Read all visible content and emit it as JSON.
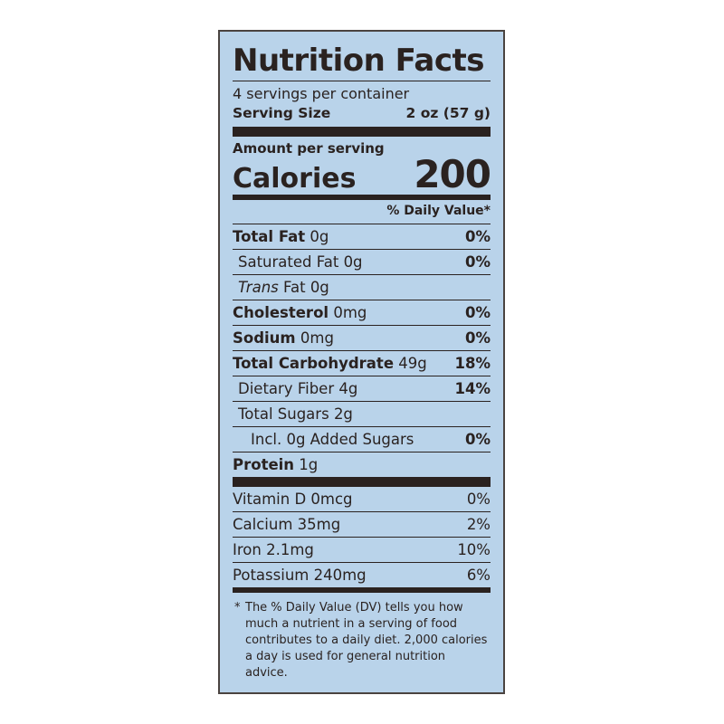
{
  "title": "Nutrition Facts",
  "servings_per_container": "4 servings per container",
  "serving_size_label": "Serving Size",
  "serving_size_value": "2 oz (57 g)",
  "amount_per_serving": "Amount per serving",
  "calories_label": "Calories",
  "calories_value": "200",
  "daily_value_header": "% Daily Value*",
  "nutrients": [
    {
      "name": "Total Fat",
      "amount": "0g",
      "dv": "0%"
    },
    {
      "name": "Saturated Fat",
      "amount": "0g",
      "dv": "0%"
    },
    {
      "name_italic": "Trans",
      "name": "Fat",
      "amount": "0g",
      "dv": ""
    },
    {
      "name": "Cholesterol",
      "amount": "0mg",
      "dv": "0%"
    },
    {
      "name": "Sodium",
      "amount": "0mg",
      "dv": "0%"
    },
    {
      "name": "Total Carbohydrate",
      "amount": "49g",
      "dv": "18%"
    },
    {
      "name": "Dietary Fiber",
      "amount": "4g",
      "dv": "14%"
    },
    {
      "name": "Total Sugars",
      "amount": "2g",
      "dv": ""
    },
    {
      "name": "Incl. 0g Added Sugars",
      "amount": "",
      "dv": "0%"
    },
    {
      "name": "Protein",
      "amount": "1g",
      "dv": ""
    }
  ],
  "vitamins": [
    {
      "name": "Vitamin D",
      "amount": "0mcg",
      "dv": "0%"
    },
    {
      "name": "Calcium",
      "amount": "35mg",
      "dv": "2%"
    },
    {
      "name": "Iron",
      "amount": "2.1mg",
      "dv": "10%"
    },
    {
      "name": "Potassium",
      "amount": "240mg",
      "dv": "6%"
    }
  ],
  "footnote_star": "*",
  "footnote": "The % Daily Value (DV) tells you how much a nutrient in a serving of food contributes to a daily diet. 2,000 calories a day is used for general nutrition advice.",
  "colors": {
    "panel_background": "#b9d3ea",
    "ink": "#2a2220"
  }
}
